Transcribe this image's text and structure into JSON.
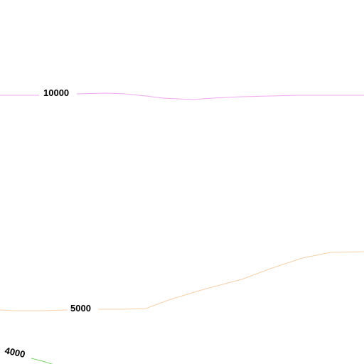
{
  "contours": [
    {
      "id": "c10000",
      "label": "10000",
      "color": "#f0a8f0"
    },
    {
      "id": "c5000",
      "label": "5000",
      "color": "#f8d0a8"
    },
    {
      "id": "c4000",
      "label": "4000",
      "color": "#7ccf6a"
    }
  ]
}
